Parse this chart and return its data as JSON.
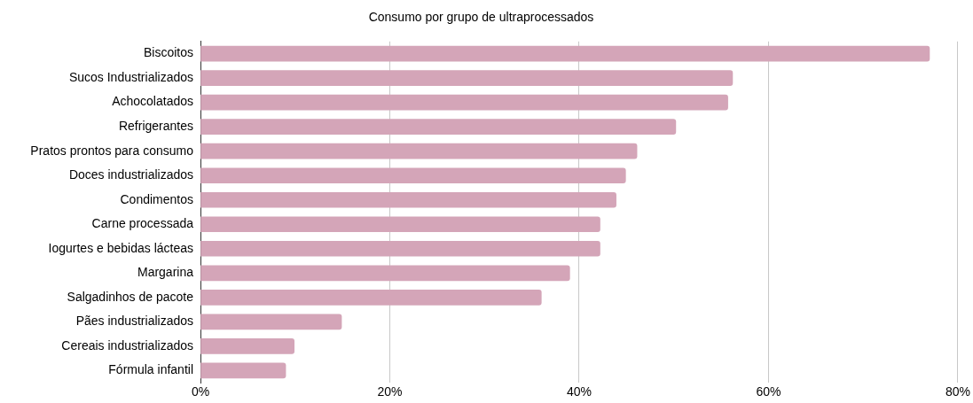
{
  "chart_data": {
    "type": "bar",
    "orientation": "horizontal",
    "title": "Consumo por grupo de ultraprocessados",
    "categories": [
      "Biscoitos",
      "Sucos Industrializados",
      "Achocolatados",
      "Refrigerantes",
      "Pratos prontos para consumo",
      "Doces industrializados",
      "Condimentos",
      "Carne processada",
      "Iogurtes e bebidas lácteas",
      "Margarina",
      "Salgadinhos de pacote",
      "Pães industrializados",
      "Cereais industrializados",
      "Fórmula infantil"
    ],
    "series": [
      {
        "color": "#d4a5b8",
        "values": [
          77,
          56.2,
          55.7,
          50.2,
          46.1,
          44.9,
          43.9,
          42.2,
          42.2,
          39,
          36,
          14.9,
          9.9,
          9
        ]
      }
    ],
    "xlim": [
      0,
      80
    ],
    "xticks": [
      {
        "value": 0,
        "label": "0%"
      },
      {
        "value": 20,
        "label": "20%"
      },
      {
        "value": 40,
        "label": "40%"
      },
      {
        "value": 60,
        "label": "60%"
      },
      {
        "value": 80,
        "label": "80%"
      }
    ],
    "grid": "x",
    "legend": false
  }
}
